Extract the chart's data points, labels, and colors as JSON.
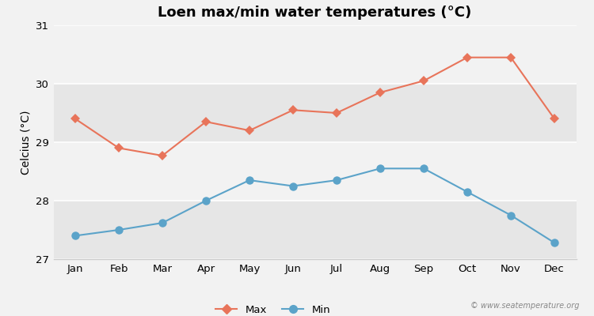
{
  "title": "Loen max/min water temperatures (°C)",
  "ylabel": "Celcius (°C)",
  "months": [
    "Jan",
    "Feb",
    "Mar",
    "Apr",
    "May",
    "Jun",
    "Jul",
    "Aug",
    "Sep",
    "Oct",
    "Nov",
    "Dec"
  ],
  "max_temps": [
    29.4,
    28.9,
    28.77,
    29.35,
    29.2,
    29.55,
    29.5,
    29.85,
    30.05,
    30.45,
    30.45,
    29.4
  ],
  "min_temps": [
    27.4,
    27.5,
    27.62,
    28.0,
    28.35,
    28.25,
    28.35,
    28.55,
    28.55,
    28.15,
    27.75,
    27.28
  ],
  "max_color": "#e8745a",
  "min_color": "#5ba3c9",
  "bg_color": "#f2f2f2",
  "band_light": "#f2f2f2",
  "band_dark": "#e6e6e6",
  "grid_color": "#ffffff",
  "spine_color": "#cccccc",
  "ylim": [
    27,
    31
  ],
  "yticks": [
    27,
    28,
    29,
    30,
    31
  ],
  "title_fontsize": 13,
  "axis_label_fontsize": 10,
  "tick_fontsize": 9.5,
  "legend_labels": [
    "Max",
    "Min"
  ],
  "watermark": "© www.seatemperature.org"
}
